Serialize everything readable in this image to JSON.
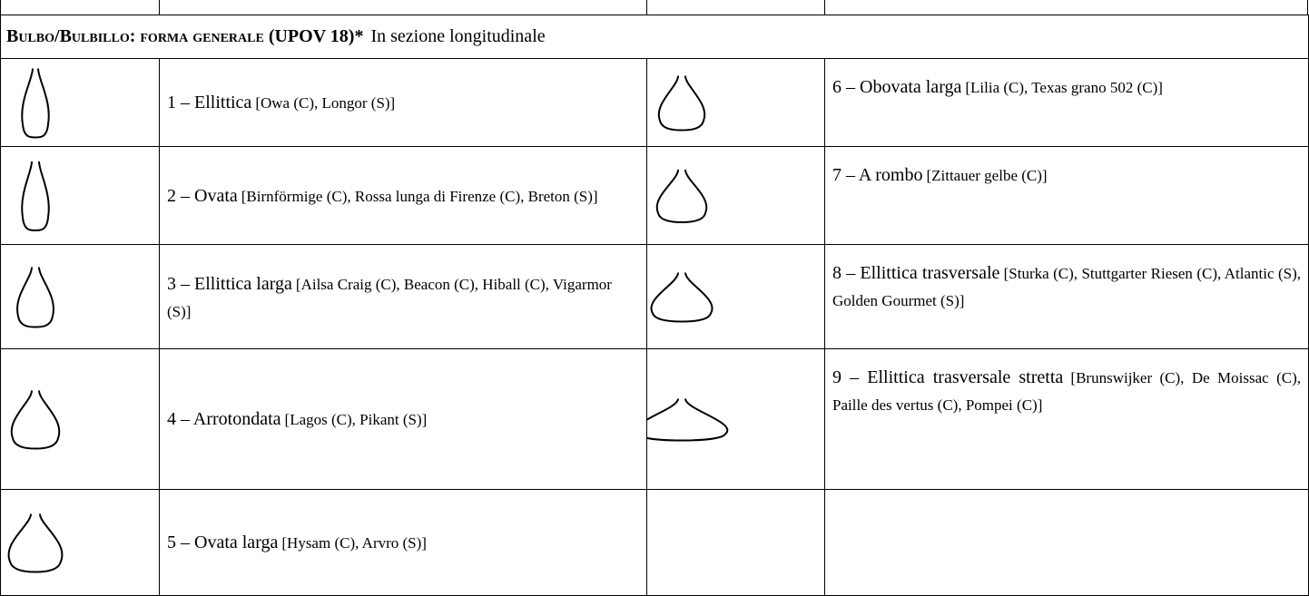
{
  "header": {
    "title": "Bulbo/Bulbillo: forma generale (UPOV 18)*",
    "subtitle": "In sezione longitudinale"
  },
  "table": {
    "rows": [
      [
        {
          "label": "1 – Ellittica",
          "examples": "[Owa (C), Longor (S)]"
        },
        {
          "label": "6 – Obovata larga",
          "examples": "[Lilia (C), Texas grano 502 (C)]"
        }
      ],
      [
        {
          "label": "2 – Ovata",
          "examples": "[Birnförmige (C), Rossa lunga di Firenze (C), Breton (S)]"
        },
        {
          "label": "7 – A rombo",
          "examples": "[Zittauer gelbe (C)]"
        }
      ],
      [
        {
          "label": "3 – Ellittica larga",
          "examples": "[Ailsa Craig (C), Beacon (C), Hiball (C), Vigarmor (S)]"
        },
        {
          "label": "8 – Ellittica trasversale",
          "examples": "[Sturka (C), Stuttgarter Riesen (C), Atlantic (S), Golden Gourmet (S)]"
        }
      ],
      [
        {
          "label": "4 – Arrotondata",
          "examples": "[Lagos (C), Pikant (S)]"
        },
        {
          "label": "9 – Ellittica trasversale stretta",
          "examples": "[Brunswijker (C), De Moissac (C), Paille des vertus (C), Pompei (C)]"
        }
      ],
      [
        {
          "label": "5 – Ovata larga",
          "examples": "[Hysam (C), Arvro (S)]"
        }
      ]
    ]
  }
}
